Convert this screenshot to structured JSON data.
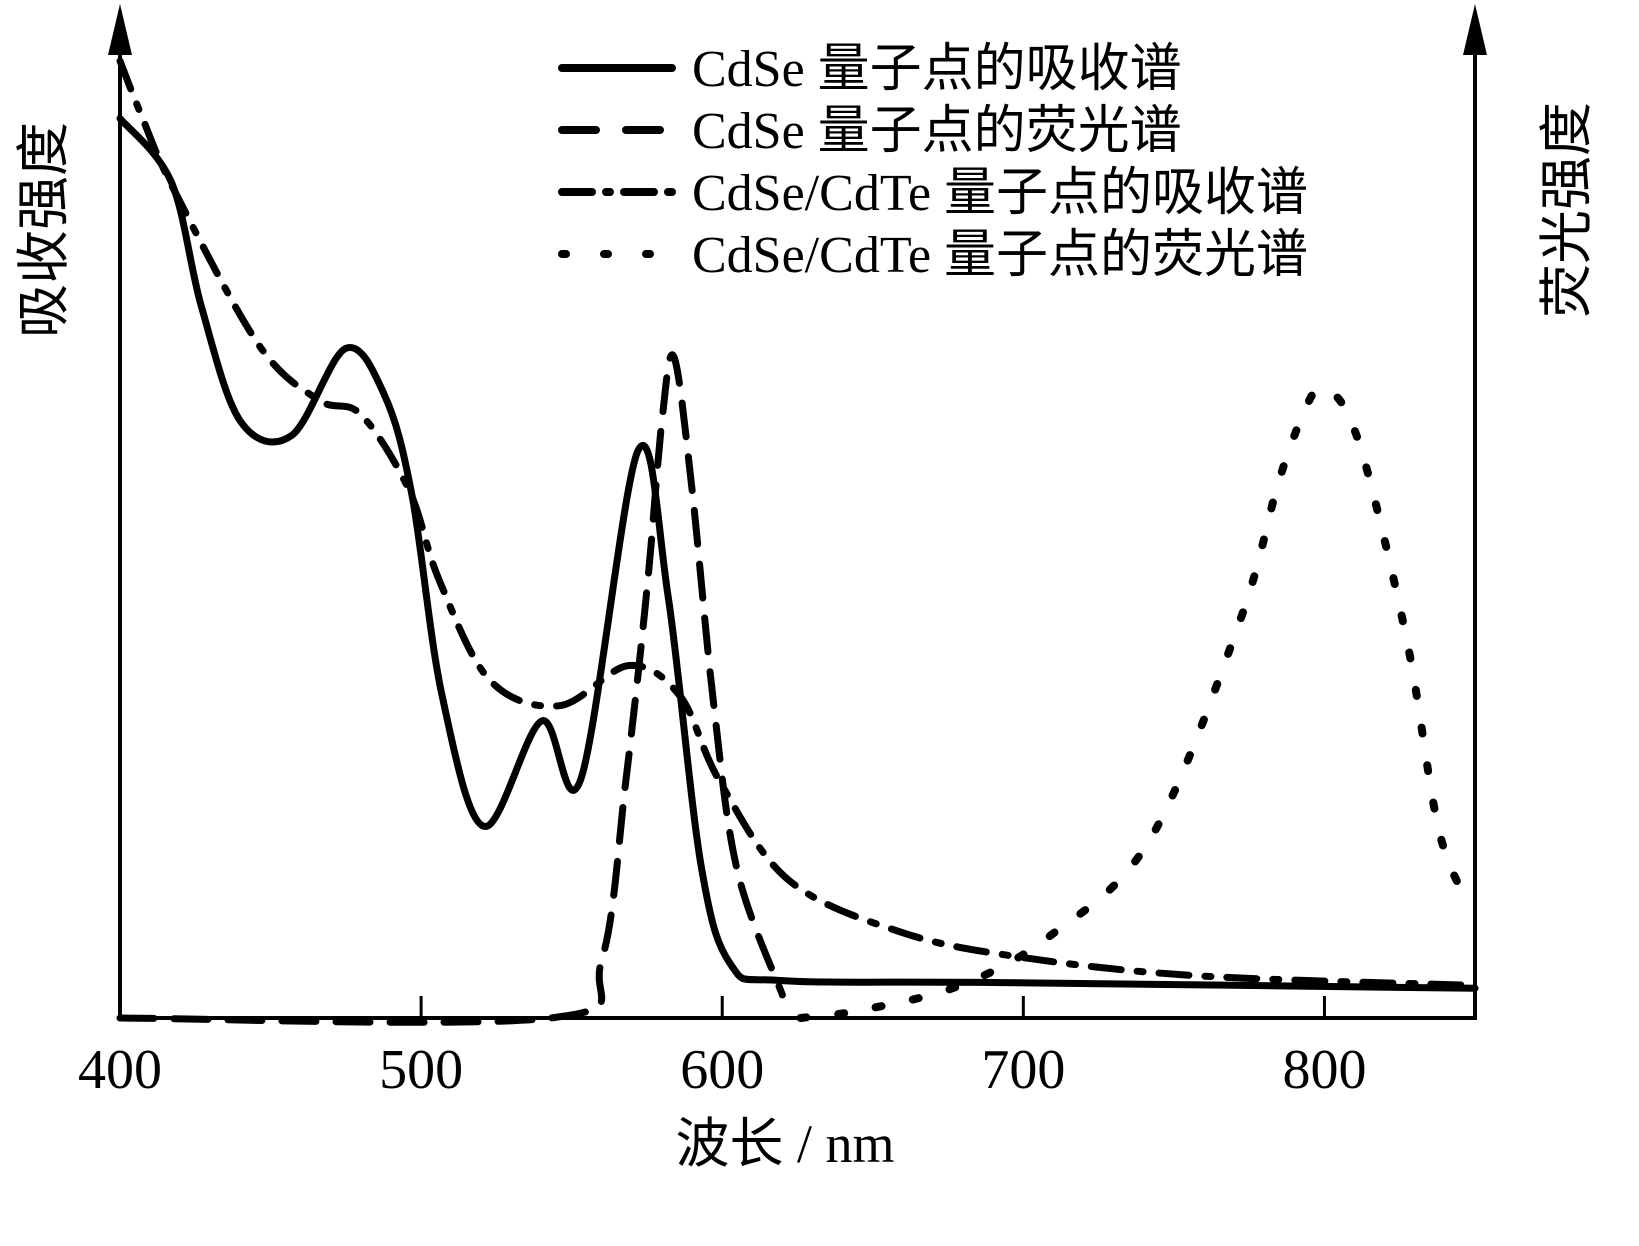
{
  "chart_data": {
    "type": "line",
    "title": "",
    "xlabel": "波长 / nm",
    "ylabel_left": "吸收强度",
    "ylabel_right": "荧光强度",
    "xlim": [
      400,
      850
    ],
    "ylim": [
      0,
      100
    ],
    "y_units": "arbitrary (no ticks shown)",
    "x_ticks": [
      400,
      500,
      600,
      700,
      800
    ],
    "x_tick_labels": [
      "400",
      "500",
      "600",
      "700",
      "800"
    ],
    "grid": false,
    "legend_position": "upper right",
    "series": [
      {
        "name": "CdSe 量子点的吸收谱",
        "style": "solid",
        "axis": "left",
        "points": [
          [
            400,
            93.9
          ],
          [
            417,
            87.3
          ],
          [
            427,
            74.3
          ],
          [
            440,
            62.3
          ],
          [
            457,
            60.8
          ],
          [
            475,
            69.9
          ],
          [
            488,
            64.9
          ],
          [
            497,
            54.5
          ],
          [
            507,
            33.6
          ],
          [
            521,
            20.0
          ],
          [
            540,
            31.0
          ],
          [
            553,
            24.9
          ],
          [
            572,
            59.2
          ],
          [
            582,
            44.1
          ],
          [
            593,
            15.9
          ],
          [
            603,
            5.5
          ],
          [
            620,
            3.9
          ],
          [
            693,
            3.7
          ],
          [
            850,
            3.1
          ]
        ]
      },
      {
        "name": "CdSe 量子点的荧光谱",
        "style": "dashed",
        "axis": "right",
        "points": [
          [
            400,
            0
          ],
          [
            543,
            0
          ],
          [
            560,
            6.1
          ],
          [
            568,
            24.8
          ],
          [
            575,
            44.7
          ],
          [
            580,
            62.4
          ],
          [
            584,
            69.0
          ],
          [
            590,
            55.1
          ],
          [
            597,
            33.2
          ],
          [
            605,
            15.4
          ],
          [
            620,
            2.4
          ]
        ]
      },
      {
        "name": "CdSe/CdTe 量子点的吸收谱",
        "style": "dashdot",
        "axis": "left",
        "points": [
          [
            400,
            99.9
          ],
          [
            407,
            94.3
          ],
          [
            418,
            86.4
          ],
          [
            446,
            70.3
          ],
          [
            466,
            64.5
          ],
          [
            480,
            63.0
          ],
          [
            496,
            55.1
          ],
          [
            506,
            45.7
          ],
          [
            523,
            35.2
          ],
          [
            546,
            32.6
          ],
          [
            569,
            36.8
          ],
          [
            586,
            33.6
          ],
          [
            599,
            24.8
          ],
          [
            622,
            14.4
          ],
          [
            659,
            9.0
          ],
          [
            698,
            6.4
          ],
          [
            758,
            4.4
          ],
          [
            850,
            3.4
          ]
        ]
      },
      {
        "name": "CdSe/CdTe 量子点的荧光谱",
        "style": "dotted",
        "axis": "right",
        "points": [
          [
            626,
            0
          ],
          [
            646,
            0.8
          ],
          [
            679,
            3.4
          ],
          [
            709,
            8.6
          ],
          [
            742,
            18.6
          ],
          [
            772,
            41.5
          ],
          [
            785,
            56.2
          ],
          [
            795,
            64.5
          ],
          [
            800,
            65.6
          ],
          [
            807,
            63.5
          ],
          [
            815,
            56.2
          ],
          [
            828,
            38.4
          ],
          [
            838,
            19.6
          ],
          [
            848,
            11.8
          ]
        ]
      }
    ]
  },
  "legend": {
    "items": [
      {
        "label": "CdSe 量子点的吸收谱",
        "style": "solid"
      },
      {
        "label": "CdSe 量子点的荧光谱",
        "style": "dashed"
      },
      {
        "label": "CdSe/CdTe 量子点的吸收谱",
        "style": "dashdot"
      },
      {
        "label": "CdSe/CdTe 量子点的荧光谱",
        "style": "dotted"
      }
    ]
  },
  "axes": {
    "xlabel": "波长 / nm",
    "ylabel_left": "吸收强度",
    "ylabel_right": "荧光强度",
    "x_tick_labels": [
      "400",
      "500",
      "600",
      "700",
      "800"
    ]
  },
  "colors": {
    "line": "#000000",
    "background": "#ffffff"
  }
}
